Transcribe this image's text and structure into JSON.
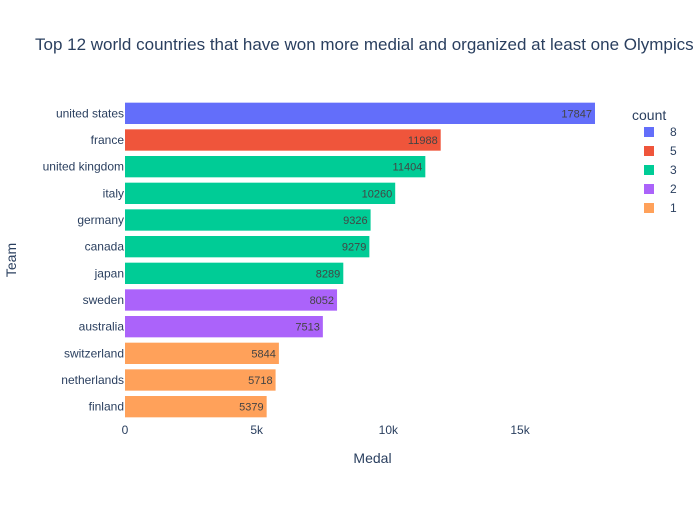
{
  "chart_data": {
    "type": "bar",
    "orientation": "horizontal",
    "title": "Top 12 world countries that have won more medial and organized at  least one Olympics",
    "xlabel": "Medal",
    "ylabel": "Team",
    "xlim": [
      0,
      20000
    ],
    "x_ticks": [
      0,
      5000,
      10000,
      15000
    ],
    "x_tick_labels": [
      "0",
      "5k",
      "10k",
      "15k"
    ],
    "grid": false,
    "legend": {
      "title": "count",
      "position": "top-right",
      "entries": [
        {
          "label": "8",
          "color": "#636efa"
        },
        {
          "label": "5",
          "color": "#ef553b"
        },
        {
          "label": "3",
          "color": "#00cc96"
        },
        {
          "label": "2",
          "color": "#ab63fa"
        },
        {
          "label": "1",
          "color": "#ffa15a"
        }
      ]
    },
    "categories": [
      "united states",
      "france",
      "united kingdom",
      "italy",
      "germany",
      "canada",
      "japan",
      "sweden",
      "australia",
      "switzerland",
      "netherlands",
      "finland"
    ],
    "values": [
      17847,
      11988,
      11404,
      10260,
      9326,
      9279,
      8289,
      8052,
      7513,
      5844,
      5718,
      5379
    ],
    "data_labels": [
      "17847",
      "11988",
      "11404",
      "10260",
      "9326",
      "9279",
      "8289",
      "8052",
      "7513",
      "5844",
      "5718",
      "5379"
    ],
    "count": [
      8,
      5,
      3,
      3,
      3,
      3,
      3,
      2,
      2,
      1,
      1,
      1
    ],
    "colors": [
      "#636efa",
      "#ef553b",
      "#00cc96",
      "#00cc96",
      "#00cc96",
      "#00cc96",
      "#00cc96",
      "#ab63fa",
      "#ab63fa",
      "#ffa15a",
      "#ffa15a",
      "#ffa15a"
    ]
  }
}
